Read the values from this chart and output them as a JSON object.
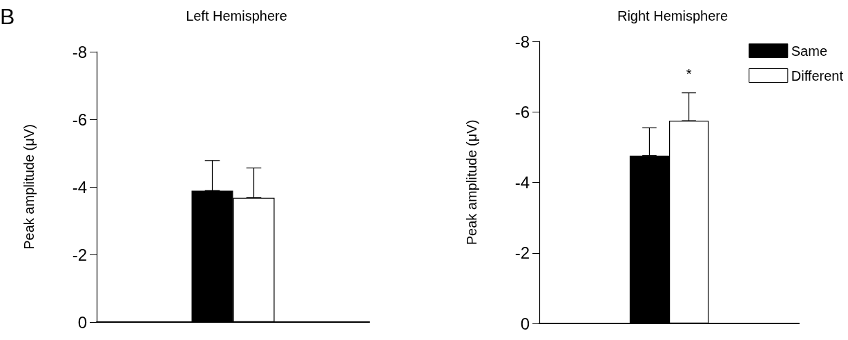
{
  "chart_data": [
    {
      "type": "bar",
      "title": "Left Hemisphere",
      "ylabel": "Peak amplitude (μV)",
      "annotations": [
        "B"
      ],
      "categories": [
        null
      ],
      "series": [
        {
          "color": "#000000",
          "values": [
            -3.89
          ],
          "errors": [
            [
              -4.78,
              -3.89
            ]
          ]
        },
        {
          "color": "#ffffff",
          "values": [
            -3.68
          ],
          "errors": [
            [
              -4.56,
              -3.68
            ]
          ]
        }
      ],
      "ylim": [
        0,
        -8
      ],
      "yticks": [
        0,
        -2,
        -4,
        -6,
        -8
      ],
      "tick_labels": "y",
      "grid": false,
      "legend": false
    },
    {
      "type": "bar",
      "title": "Right Hemisphere",
      "ylabel": "Peak amplitude (μV)",
      "annotations": [
        "*"
      ],
      "categories": [
        null
      ],
      "series": [
        {
          "name": "Same",
          "color": "#000000",
          "values": [
            -4.76
          ],
          "errors": [
            [
              -5.55,
              -4.76
            ]
          ]
        },
        {
          "name": "Different",
          "color": "#ffffff",
          "values": [
            -5.75
          ],
          "errors": [
            [
              -6.54,
              -5.75
            ]
          ]
        }
      ],
      "ylim": [
        0,
        -8
      ],
      "yticks": [
        0,
        -2,
        -4,
        -6,
        -8
      ],
      "tick_labels": "y",
      "grid": false,
      "legend": "top right"
    }
  ]
}
